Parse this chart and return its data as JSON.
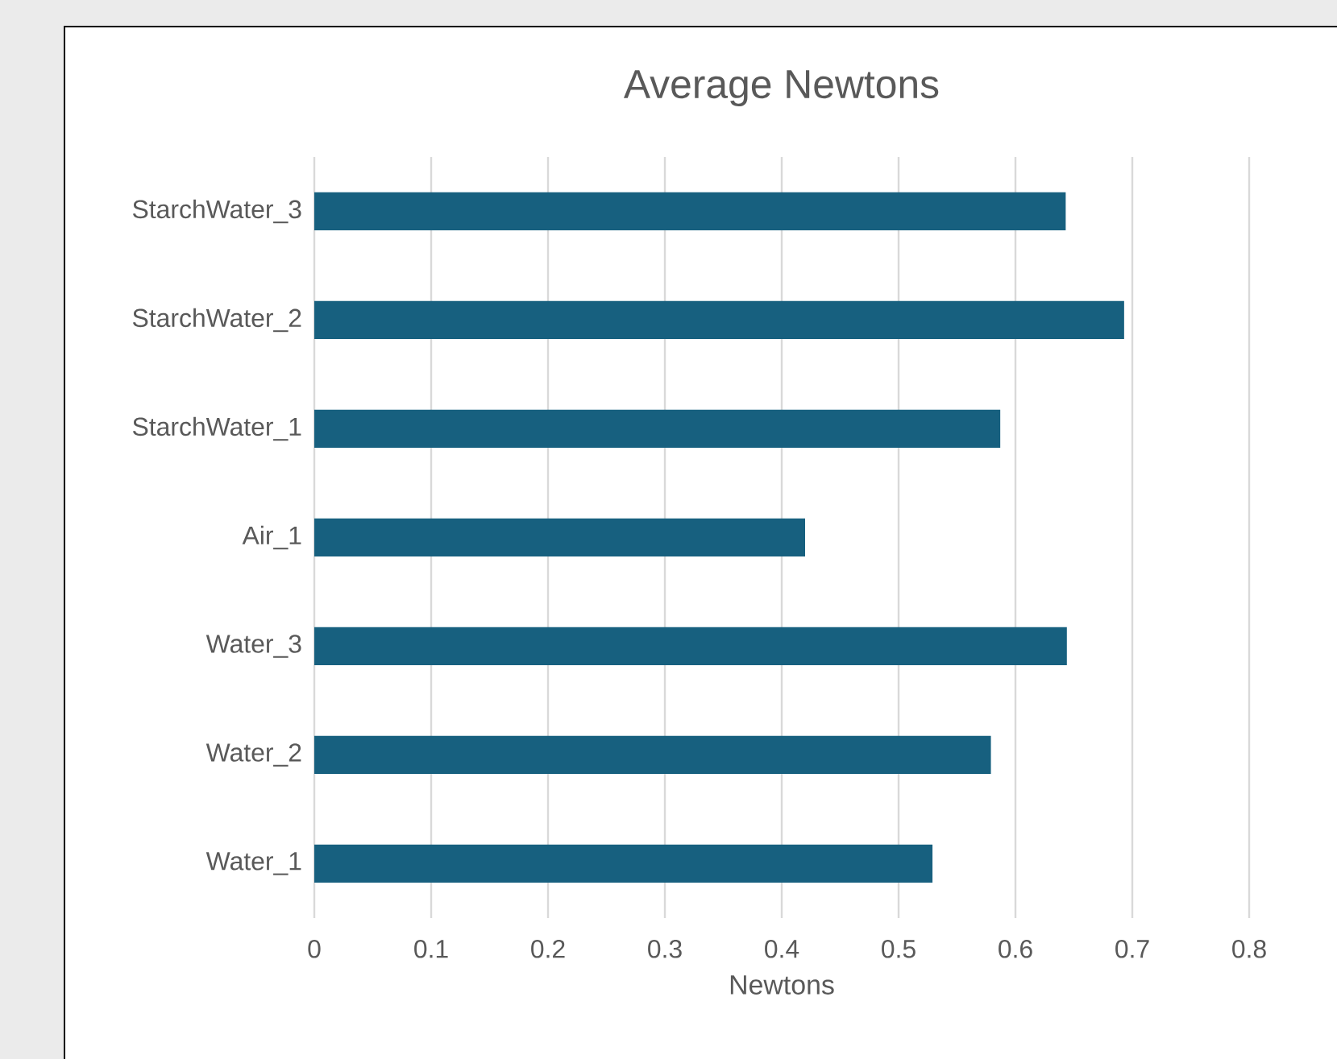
{
  "chart_data": {
    "type": "bar",
    "orientation": "horizontal",
    "title": "Average Newtons",
    "xlabel": "Newtons",
    "categories": [
      "StarchWater_3",
      "StarchWater_2",
      "StarchWater_1",
      "Air_1",
      "Water_3",
      "Water_2",
      "Water_1"
    ],
    "values": [
      0.643,
      0.693,
      0.587,
      0.42,
      0.644,
      0.579,
      0.529
    ],
    "color": "#17607f",
    "xlim": [
      0,
      0.8
    ],
    "xticks": [
      0,
      0.1,
      0.2,
      0.3,
      0.4,
      0.5,
      0.6,
      0.7,
      0.8
    ],
    "grid": "x"
  }
}
